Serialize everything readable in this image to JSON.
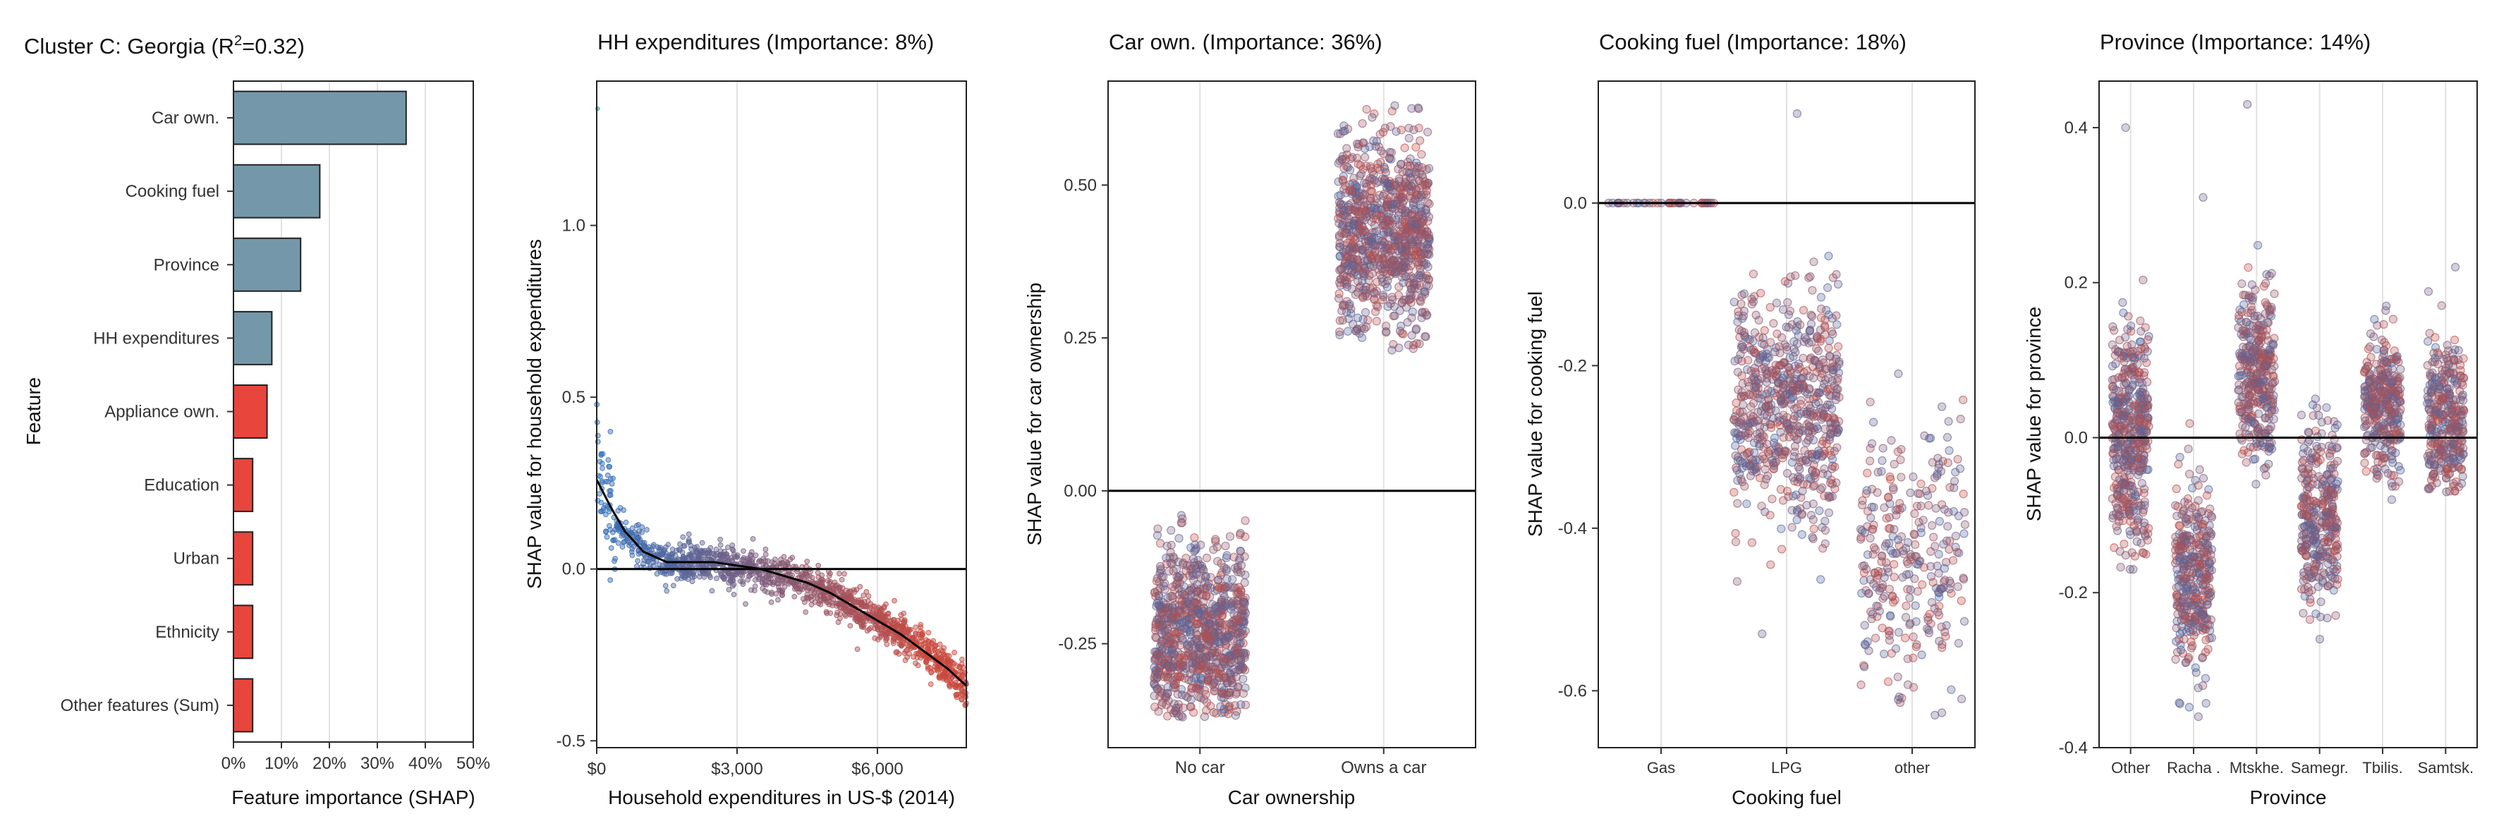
{
  "chart_data": [
    {
      "type": "bar",
      "title": "Cluster C: Georgia (R",
      "title_sup": "2",
      "title_suffix": "=0.32)",
      "xlabel": "Feature importance (SHAP)",
      "ylabel": "Feature",
      "xlim": [
        0,
        50
      ],
      "xticks": [
        0,
        10,
        20,
        30,
        40,
        50
      ],
      "xtick_labels": [
        "0%",
        "10%",
        "20%",
        "30%",
        "40%",
        "50%"
      ],
      "grid": "vertical",
      "categories": [
        "Car own.",
        "Cooking fuel",
        "Province",
        "HH expenditures",
        "Appliance own.",
        "Education",
        "Urban",
        "Ethnicity",
        "Other features (Sum)"
      ],
      "values": [
        36,
        18,
        14,
        8,
        7,
        4,
        4,
        4,
        4
      ],
      "bar_colors": [
        "#7498aa",
        "#7498aa",
        "#7498aa",
        "#7498aa",
        "#e8453c",
        "#e8453c",
        "#e8453c",
        "#e8453c",
        "#e8453c"
      ]
    },
    {
      "type": "scatter",
      "title": "HH expenditures (Importance: 8%)",
      "xlabel": "Household expenditures in US-$ (2014)",
      "ylabel": "SHAP value for household expenditures",
      "xlim": [
        0,
        7900
      ],
      "ylim": [
        -0.52,
        1.42
      ],
      "xticks": [
        0,
        3000,
        6000
      ],
      "xtick_labels": [
        "$0",
        "$3,000",
        "$6,000"
      ],
      "yticks": [
        -0.5,
        0.0,
        0.5,
        1.0
      ],
      "ytick_labels": [
        "-0.5",
        "0.0",
        "0.5",
        "1.0"
      ],
      "reference_line": 0,
      "color_scale": [
        "#2f6fba",
        "#c94a3e"
      ],
      "trend_line": {
        "x": [
          0,
          300,
          600,
          1000,
          1500,
          2000,
          2500,
          3000,
          3500,
          4000,
          4500,
          5000,
          5500,
          6000,
          6500,
          7000,
          7500,
          7900
        ],
        "y": [
          0.26,
          0.18,
          0.11,
          0.05,
          0.02,
          0.02,
          0.02,
          0.01,
          0.0,
          -0.02,
          -0.04,
          -0.07,
          -0.11,
          -0.15,
          -0.19,
          -0.24,
          -0.29,
          -0.34
        ]
      }
    },
    {
      "type": "scatter",
      "title": "Car own. (Importance: 36%)",
      "xlabel": "Car ownership",
      "ylabel": "SHAP value for car ownership",
      "categories": [
        "No car",
        "Owns a car"
      ],
      "ylim": [
        -0.42,
        0.67
      ],
      "yticks": [
        -0.25,
        0.0,
        0.25,
        0.5
      ],
      "ytick_labels": [
        "-0.25",
        "0.00",
        "0.25",
        "0.50"
      ],
      "reference_line": 0,
      "groups": [
        {
          "category": "No car",
          "center": -0.24,
          "spread": 0.085,
          "min": -0.37,
          "max": -0.04,
          "n": 900
        },
        {
          "category": "Owns a car",
          "center": 0.42,
          "spread": 0.09,
          "min": 0.23,
          "max": 0.63,
          "n": 900
        }
      ]
    },
    {
      "type": "scatter",
      "title": "Cooking fuel (Importance: 18%)",
      "xlabel": "Cooking fuel",
      "ylabel": "SHAP value for cooking fuel",
      "categories": [
        "Gas",
        "LPG",
        "other"
      ],
      "ylim": [
        -0.67,
        0.15
      ],
      "yticks": [
        -0.6,
        -0.4,
        -0.2,
        0.0
      ],
      "ytick_labels": [
        "-0.6",
        "-0.4",
        "-0.2",
        "0.0"
      ],
      "reference_line": 0,
      "groups": [
        {
          "category": "Gas",
          "center": 0.0,
          "spread": 0.0,
          "min": 0.0,
          "max": 0.0,
          "n": 40
        },
        {
          "category": "LPG",
          "center": -0.25,
          "spread": 0.07,
          "min": -0.53,
          "max": 0.11,
          "n": 700
        },
        {
          "category": "other",
          "center": -0.43,
          "spread": 0.08,
          "min": -0.63,
          "max": -0.21,
          "n": 300
        }
      ]
    },
    {
      "type": "scatter",
      "title": "Province (Importance: 14%)",
      "xlabel": "Province",
      "ylabel": "SHAP value for province",
      "categories": [
        "Other",
        "Racha .",
        "Mtskhe.",
        "Samegr.",
        "Tbilis.",
        "Samtsk."
      ],
      "ylim": [
        -0.4,
        0.46
      ],
      "yticks": [
        -0.4,
        -0.2,
        0.0,
        0.2,
        0.4
      ],
      "ytick_labels": [
        "-0.4",
        "-0.2",
        "0.0",
        "0.2",
        "0.4"
      ],
      "reference_line": 0,
      "groups": [
        {
          "category": "Other",
          "center": 0.0,
          "spread": 0.075,
          "min": -0.17,
          "max": 0.4,
          "n": 450
        },
        {
          "category": "Racha .",
          "center": -0.18,
          "spread": 0.06,
          "min": -0.36,
          "max": 0.31,
          "n": 350
        },
        {
          "category": "Mtskhe.",
          "center": 0.08,
          "spread": 0.06,
          "min": -0.06,
          "max": 0.43,
          "n": 350
        },
        {
          "category": "Samegr.",
          "center": -0.1,
          "spread": 0.06,
          "min": -0.26,
          "max": 0.05,
          "n": 330
        },
        {
          "category": "Tbilis.",
          "center": 0.04,
          "spread": 0.045,
          "min": -0.08,
          "max": 0.17,
          "n": 330
        },
        {
          "category": "Samtsk.",
          "center": 0.02,
          "spread": 0.06,
          "min": -0.07,
          "max": 0.22,
          "n": 330
        }
      ]
    }
  ]
}
